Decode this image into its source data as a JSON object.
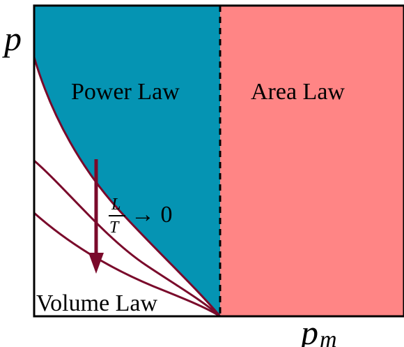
{
  "diagram": {
    "axes": {
      "y_label": "p",
      "x_label": "p",
      "x_label_subscript": "m"
    },
    "regions": {
      "power_law": {
        "label": "Power Law",
        "color": "#0594b3"
      },
      "area_law": {
        "label": "Area Law",
        "color": "#ff8585"
      },
      "volume_law": {
        "label": "Volume Law",
        "color": "#ffffff"
      }
    },
    "arrow": {
      "color": "#7a0a2b",
      "numerator": "L",
      "denominator": "T",
      "relation": "→ 0"
    },
    "curve_color": "#7a0a2b",
    "frame_color": "#000000"
  }
}
